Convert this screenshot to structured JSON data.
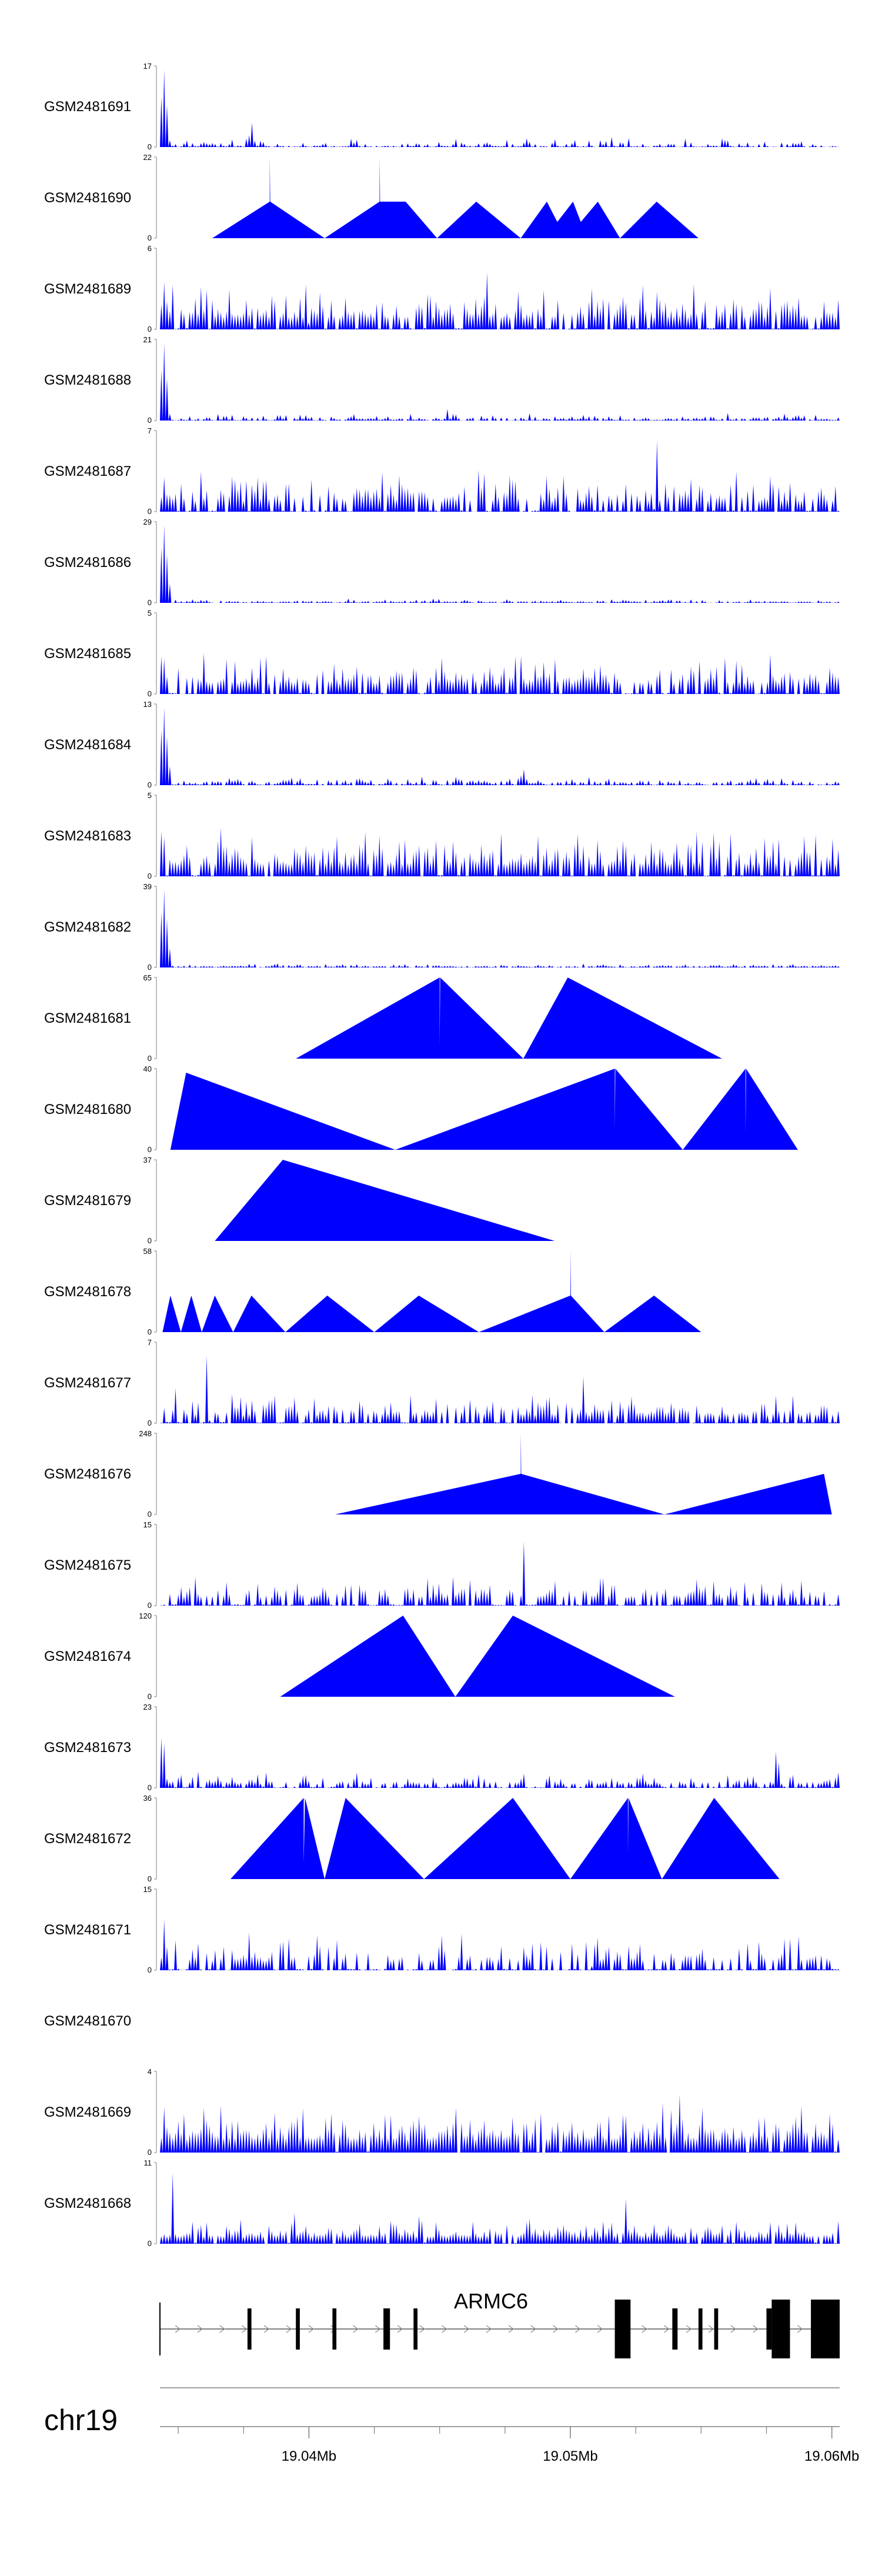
{
  "colors": {
    "signal": "#0000ff",
    "gene": "#000000",
    "axis": "#808080"
  },
  "chart_data": {
    "type": "area",
    "chromosome": "chr19",
    "xlim": [
      19.0343,
      19.0603
    ],
    "x_ticks": [
      {
        "value": 19.04,
        "label": "19.04Mb"
      },
      {
        "value": 19.05,
        "label": "19.05Mb"
      },
      {
        "value": 19.06,
        "label": "19.06Mb"
      }
    ],
    "gene": {
      "name": "ARMC6",
      "start": 19.0343,
      "end": 19.0603,
      "exons": [
        [
          19.03765,
          19.0378
        ],
        [
          19.0395,
          19.03965
        ],
        [
          19.0409,
          19.04105
        ],
        [
          19.04285,
          19.0431
        ],
        [
          19.044,
          19.04415
        ],
        [
          19.0517,
          19.0523
        ],
        [
          19.0539,
          19.0541
        ],
        [
          19.0549,
          19.05505
        ],
        [
          19.0555,
          19.05565
        ],
        [
          19.0575,
          19.0577
        ],
        [
          19.0577,
          19.0584
        ],
        [
          19.0592,
          19.0603
        ]
      ]
    },
    "series": [
      {
        "name": "GSM2481691",
        "ymax": "17",
        "kind": "dense",
        "seed": 101,
        "density": 0.3,
        "base": 0.12,
        "peaks": [
          [
            19.03445,
            1.0,
            0.00025
          ],
          [
            19.0378,
            0.35,
            0.00015
          ]
        ]
      },
      {
        "name": "GSM2481690",
        "ymax": "22",
        "kind": "tri",
        "points": [
          [
            19.0363,
            0
          ],
          [
            19.0385,
            0.45
          ],
          [
            19.0385,
            1.0
          ],
          [
            19.03852,
            0.45
          ],
          [
            19.0406,
            0
          ],
          [
            19.0427,
            0.45
          ],
          [
            19.0427,
            1.0
          ],
          [
            19.04272,
            0.45
          ],
          [
            19.0437,
            0.45
          ],
          [
            19.0449,
            0
          ],
          [
            19.0464,
            0.45
          ],
          [
            19.0481,
            0
          ],
          [
            19.0491,
            0.45
          ],
          [
            19.0495,
            0.2
          ],
          [
            19.0501,
            0.45
          ],
          [
            19.0504,
            0.2
          ],
          [
            19.05105,
            0.45
          ],
          [
            19.0519,
            0
          ],
          [
            19.0533,
            0.45
          ],
          [
            19.0549,
            0
          ]
        ]
      },
      {
        "name": "GSM2481689",
        "ymax": "6",
        "kind": "dense",
        "seed": 289,
        "density": 0.85,
        "base": 0.5,
        "peaks": [
          [
            19.0345,
            0.85,
            0.00012
          ],
          [
            19.0399,
            0.7,
            0.0001
          ],
          [
            19.0468,
            0.8,
            0.0001
          ]
        ]
      },
      {
        "name": "GSM2481688",
        "ymax": "21",
        "kind": "dense",
        "seed": 388,
        "density": 0.5,
        "base": 0.08,
        "peaks": [
          [
            19.03445,
            1.0,
            0.00025
          ],
          [
            19.0453,
            0.15,
            0.0001
          ]
        ]
      },
      {
        "name": "GSM2481687",
        "ymax": "7",
        "kind": "dense",
        "seed": 487,
        "density": 0.7,
        "base": 0.45,
        "peaks": [
          [
            19.0533,
            1.0,
            0.0001
          ],
          [
            19.0436,
            0.55,
            0.0001
          ]
        ]
      },
      {
        "name": "GSM2481686",
        "ymax": "29",
        "kind": "dense",
        "seed": 586,
        "density": 0.5,
        "base": 0.05,
        "peaks": [
          [
            19.03445,
            1.0,
            0.0003
          ]
        ]
      },
      {
        "name": "GSM2481685",
        "ymax": "5",
        "kind": "dense",
        "seed": 685,
        "density": 0.8,
        "base": 0.45,
        "peaks": [
          [
            19.0344,
            0.6,
            0.0002
          ],
          [
            19.0451,
            0.5,
            0.0002
          ]
        ]
      },
      {
        "name": "GSM2481684",
        "ymax": "13",
        "kind": "dense",
        "seed": 784,
        "density": 0.55,
        "base": 0.1,
        "peaks": [
          [
            19.03445,
            1.0,
            0.0003
          ],
          [
            19.0482,
            0.22,
            0.0002
          ]
        ]
      },
      {
        "name": "GSM2481683",
        "ymax": "5",
        "kind": "dense",
        "seed": 883,
        "density": 0.85,
        "base": 0.5,
        "peaks": [
          [
            19.0344,
            0.8,
            0.00015
          ],
          [
            19.0366,
            0.7,
            0.0002
          ]
        ]
      },
      {
        "name": "GSM2481682",
        "ymax": "39",
        "kind": "dense",
        "seed": 982,
        "density": 0.45,
        "base": 0.05,
        "peaks": [
          [
            19.03445,
            1.0,
            0.0003
          ]
        ]
      },
      {
        "name": "GSM2481681",
        "ymax": "65",
        "kind": "tri",
        "points": [
          [
            19.0395,
            0
          ],
          [
            19.045,
            1.0
          ],
          [
            19.045,
            0.15
          ],
          [
            19.04502,
            1.0
          ],
          [
            19.0482,
            0
          ],
          [
            19.0499,
            1.0
          ],
          [
            19.0558,
            0
          ]
        ]
      },
      {
        "name": "GSM2481680",
        "ymax": "40",
        "kind": "tri",
        "points": [
          [
            19.0347,
            0
          ],
          [
            19.0353,
            0.95
          ],
          [
            19.0433,
            0
          ],
          [
            19.0517,
            1.0
          ],
          [
            19.0517,
            0.25
          ],
          [
            19.05172,
            1.0
          ],
          [
            19.0543,
            0
          ],
          [
            19.0567,
            1.0
          ],
          [
            19.0567,
            0.2
          ],
          [
            19.05672,
            1.0
          ],
          [
            19.0587,
            0
          ]
        ]
      },
      {
        "name": "GSM2481679",
        "ymax": "37",
        "kind": "tri",
        "points": [
          [
            19.0364,
            0
          ],
          [
            19.039,
            1.0
          ],
          [
            19.0494,
            0
          ]
        ]
      },
      {
        "name": "GSM2481678",
        "ymax": "58",
        "kind": "tri",
        "points": [
          [
            19.0344,
            0
          ],
          [
            19.0347,
            0.45
          ],
          [
            19.0351,
            0
          ],
          [
            19.0355,
            0.45
          ],
          [
            19.0359,
            0
          ],
          [
            19.0364,
            0.45
          ],
          [
            19.0371,
            0
          ],
          [
            19.0378,
            0.45
          ],
          [
            19.0391,
            0
          ],
          [
            19.0407,
            0.45
          ],
          [
            19.0425,
            0
          ],
          [
            19.0442,
            0.45
          ],
          [
            19.0465,
            0
          ],
          [
            19.05,
            0.45
          ],
          [
            19.05,
            1.0
          ],
          [
            19.05002,
            0.45
          ],
          [
            19.0513,
            0
          ],
          [
            19.0532,
            0.45
          ],
          [
            19.055,
            0
          ]
        ]
      },
      {
        "name": "GSM2481677",
        "ymax": "7",
        "kind": "dense",
        "seed": 1477,
        "density": 0.75,
        "base": 0.35,
        "peaks": [
          [
            19.0361,
            0.95,
            0.0001
          ],
          [
            19.0349,
            0.45,
            0.0001
          ],
          [
            19.0505,
            0.6,
            0.0001
          ]
        ]
      },
      {
        "name": "GSM2481676",
        "ymax": "248",
        "kind": "tri",
        "points": [
          [
            19.041,
            0
          ],
          [
            19.0481,
            0.5
          ],
          [
            19.0481,
            1.0
          ],
          [
            19.04812,
            0.5
          ],
          [
            19.0536,
            0
          ],
          [
            19.0597,
            0.5
          ],
          [
            19.06,
            0
          ]
        ]
      },
      {
        "name": "GSM2481675",
        "ymax": "15",
        "kind": "dense",
        "seed": 1675,
        "density": 0.6,
        "base": 0.35,
        "peaks": [
          [
            19.0482,
            1.0,
            0.0001
          ],
          [
            19.0512,
            0.75,
            0.0001
          ]
        ]
      },
      {
        "name": "GSM2481674",
        "ymax": "120",
        "kind": "tri",
        "points": [
          [
            19.0389,
            0
          ],
          [
            19.0436,
            1.0
          ],
          [
            19.0456,
            0
          ],
          [
            19.0478,
            1.0
          ],
          [
            19.054,
            0
          ]
        ]
      },
      {
        "name": "GSM2481673",
        "ymax": "23",
        "kind": "dense",
        "seed": 1873,
        "density": 0.6,
        "base": 0.18,
        "peaks": [
          [
            19.0344,
            0.8,
            0.0002
          ],
          [
            19.0579,
            0.6,
            0.00015
          ],
          [
            19.0602,
            0.35,
            0.0001
          ]
        ]
      },
      {
        "name": "GSM2481672",
        "ymax": "36",
        "kind": "tri",
        "points": [
          [
            19.037,
            0
          ],
          [
            19.0398,
            1.0
          ],
          [
            19.0398,
            0.2
          ],
          [
            19.03985,
            1.0
          ],
          [
            19.0406,
            0
          ],
          [
            19.0414,
            1.0
          ],
          [
            19.0444,
            0
          ],
          [
            19.0478,
            1.0
          ],
          [
            19.05,
            0
          ],
          [
            19.0522,
            1.0
          ],
          [
            19.0522,
            0.3
          ],
          [
            19.05222,
            1.0
          ],
          [
            19.0535,
            0
          ],
          [
            19.0555,
            1.0
          ],
          [
            19.058,
            0
          ]
        ]
      },
      {
        "name": "GSM2481671",
        "ymax": "15",
        "kind": "dense",
        "seed": 2071,
        "density": 0.45,
        "base": 0.4,
        "peaks": [
          [
            19.0345,
            1.0,
            0.0001
          ],
          [
            19.051,
            0.5,
            0.0002
          ]
        ]
      },
      {
        "name": "GSM2481670",
        "ymax": "",
        "kind": "empty"
      },
      {
        "name": "GSM2481669",
        "ymax": "4",
        "kind": "dense",
        "seed": 2269,
        "density": 0.95,
        "base": 0.55,
        "peaks": [
          [
            19.0345,
            0.9,
            0.0001
          ],
          [
            19.0542,
            0.9,
            0.0001
          ]
        ]
      },
      {
        "name": "GSM2481668",
        "ymax": "11",
        "kind": "dense",
        "seed": 2368,
        "density": 0.9,
        "base": 0.3,
        "peaks": [
          [
            19.0348,
            1.0,
            0.0001
          ],
          [
            19.0394,
            0.7,
            0.0001
          ],
          [
            19.0521,
            0.7,
            0.0001
          ]
        ]
      }
    ]
  }
}
